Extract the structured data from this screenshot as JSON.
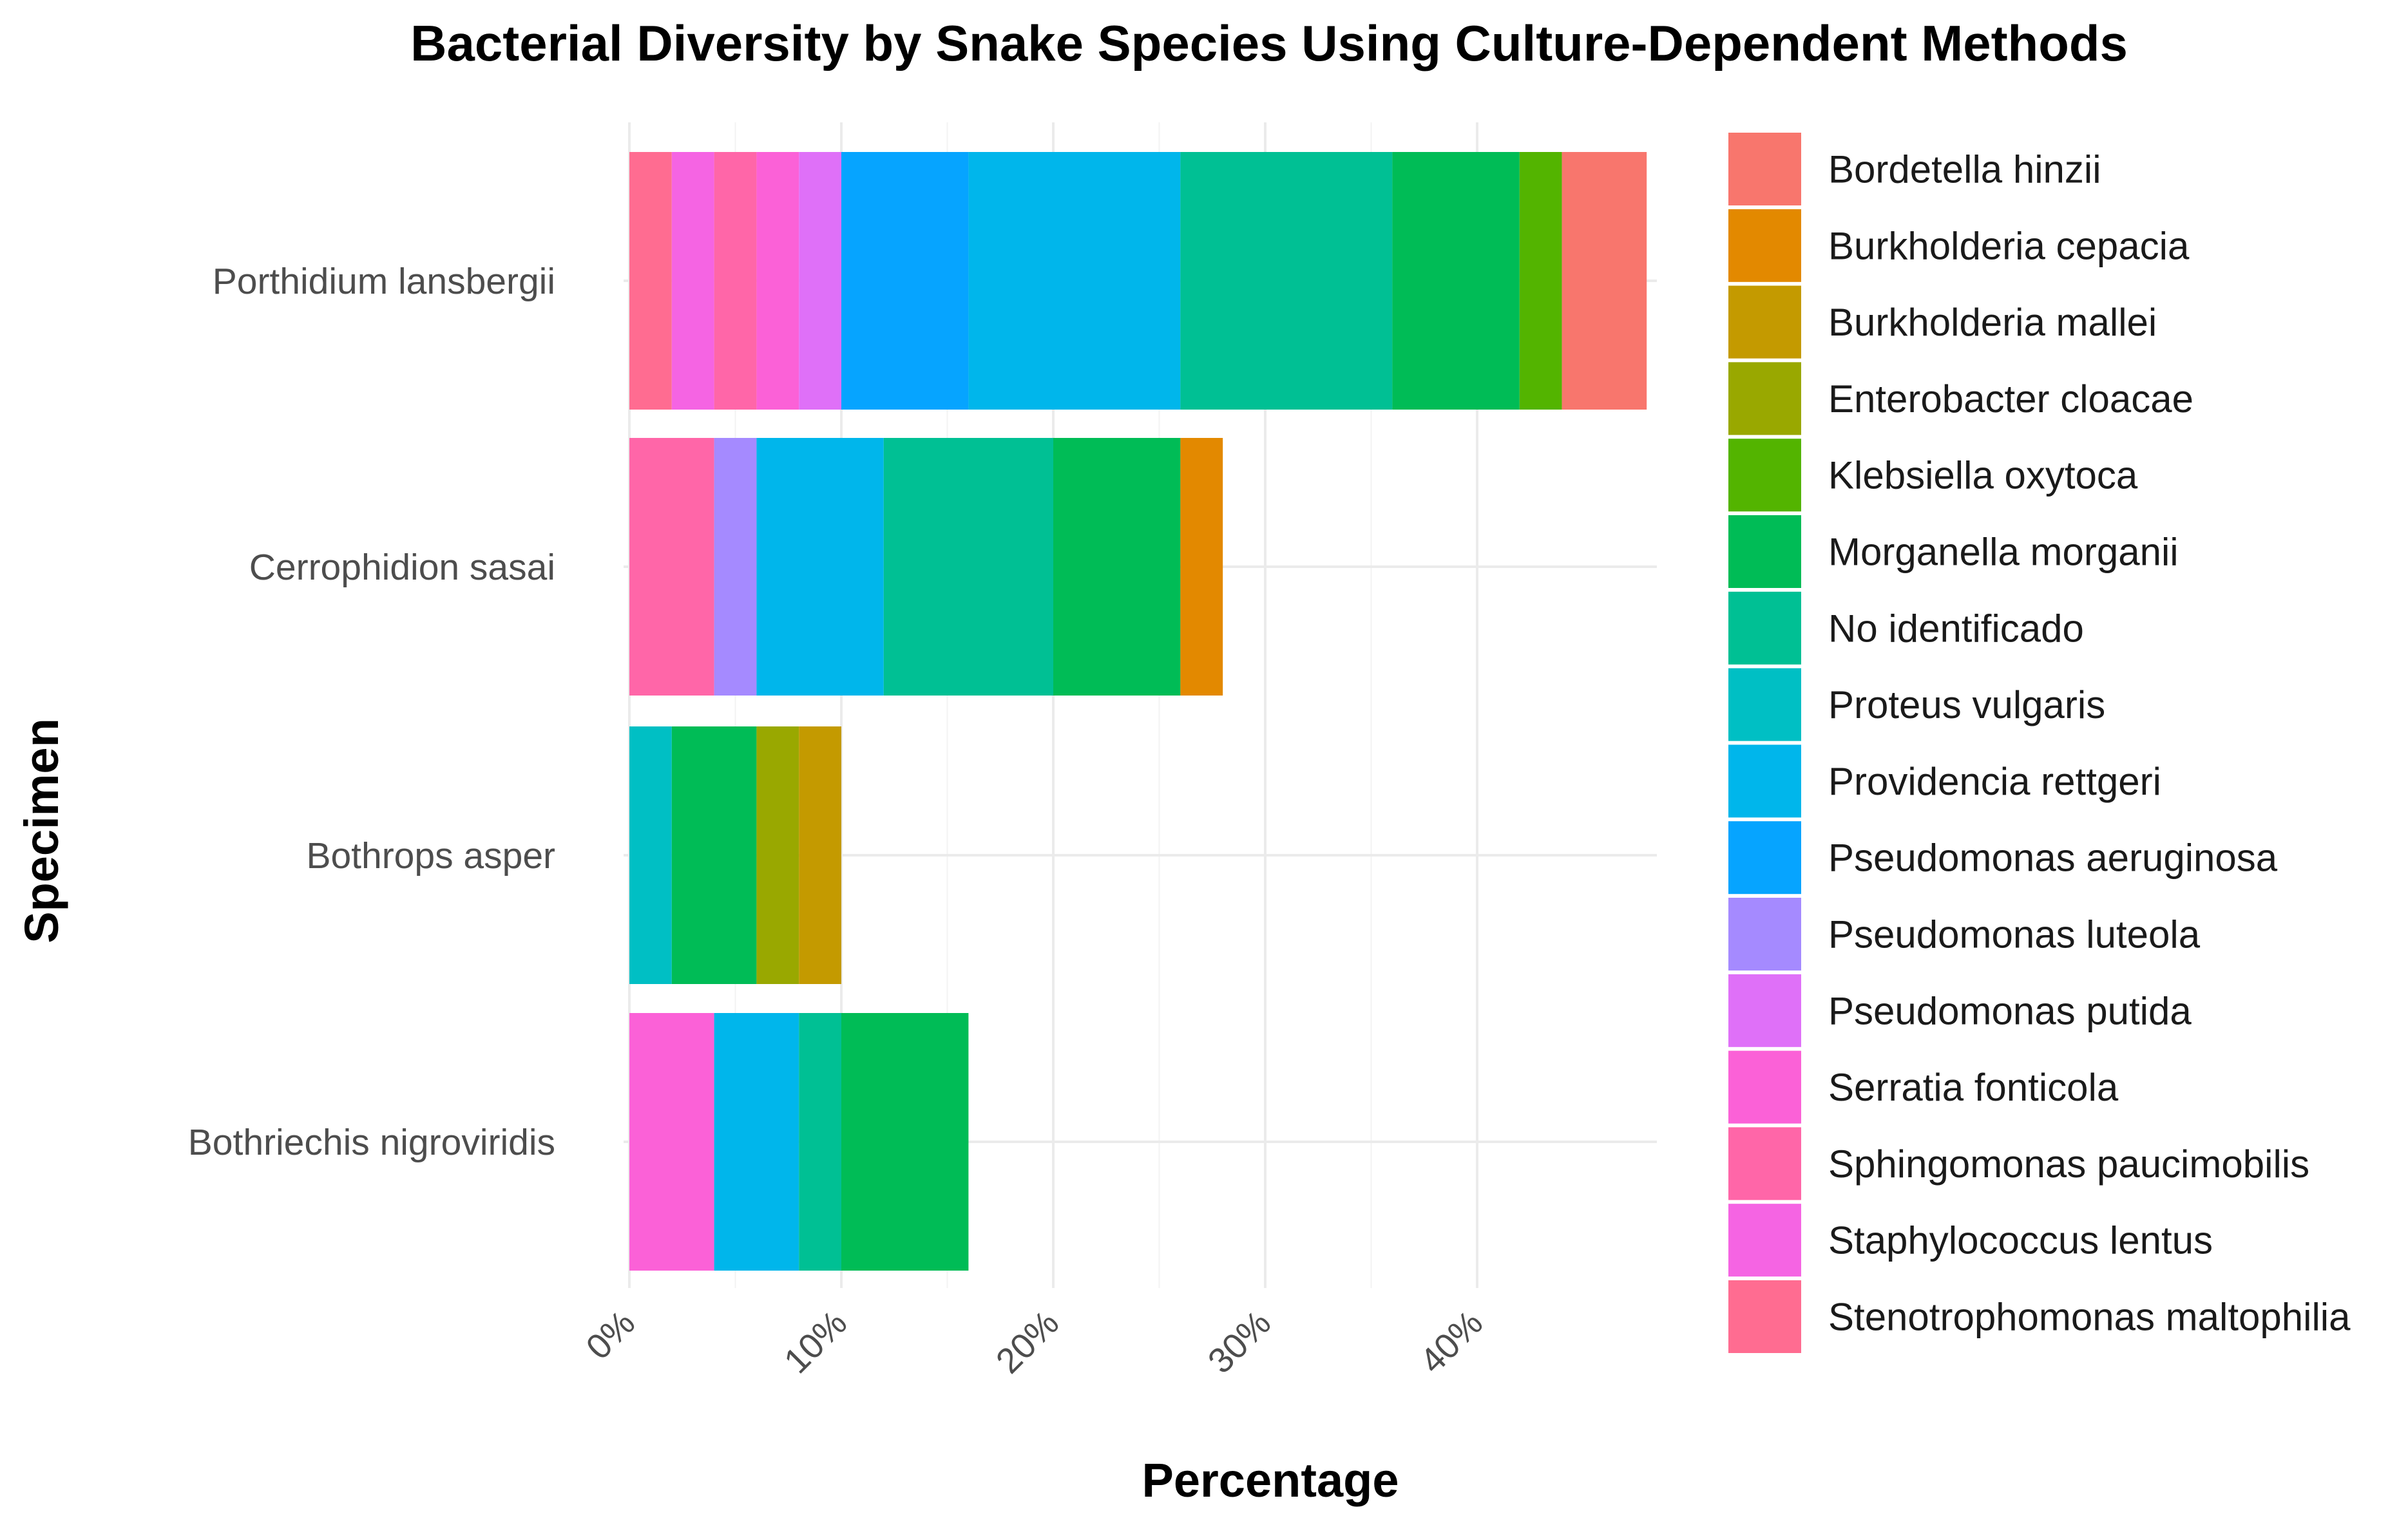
{
  "chart_data": {
    "type": "bar",
    "orientation": "horizontal",
    "stacked": true,
    "title": "Bacterial Diversity by Snake Species Using Culture-Dependent Methods",
    "xlabel": "Percentage",
    "ylabel": "Specimen",
    "xlim": [
      0,
      48
    ],
    "x_ticks": [
      0,
      10,
      20,
      30,
      40
    ],
    "x_tick_labels": [
      "0%",
      "10%",
      "20%",
      "30%",
      "40%"
    ],
    "grid": true,
    "legend_position": "right",
    "categories": [
      "Porthidium lansbergii",
      "Cerrophidion sasai",
      "Bothrops asper",
      "Bothriechis nigroviridis"
    ],
    "series": [
      {
        "name": "Bordetella hinzii",
        "color": "#F8766D",
        "values": [
          4,
          0,
          0,
          0
        ]
      },
      {
        "name": "Burkholderia cepacia",
        "color": "#E38900",
        "values": [
          0,
          2,
          0,
          0
        ]
      },
      {
        "name": "Burkholderia mallei",
        "color": "#C49A00",
        "values": [
          0,
          0,
          2,
          0
        ]
      },
      {
        "name": "Enterobacter cloacae",
        "color": "#99A800",
        "values": [
          0,
          0,
          2,
          0
        ]
      },
      {
        "name": "Klebsiella oxytoca",
        "color": "#53B400",
        "values": [
          2,
          0,
          0,
          0
        ]
      },
      {
        "name": "Morganella morganii",
        "color": "#00BC56",
        "values": [
          6,
          6,
          4,
          6
        ]
      },
      {
        "name": "No identificado",
        "color": "#00C094",
        "values": [
          10,
          8,
          0,
          2
        ]
      },
      {
        "name": "Proteus vulgaris",
        "color": "#00BFC4",
        "values": [
          0,
          0,
          2,
          0
        ]
      },
      {
        "name": "Providencia rettgeri",
        "color": "#00B6EB",
        "values": [
          10,
          6,
          0,
          4
        ]
      },
      {
        "name": "Pseudomonas aeruginosa",
        "color": "#06A4FF",
        "values": [
          6,
          0,
          0,
          0
        ]
      },
      {
        "name": "Pseudomonas luteola",
        "color": "#A58AFF",
        "values": [
          0,
          2,
          0,
          0
        ]
      },
      {
        "name": "Pseudomonas putida",
        "color": "#DF70F8",
        "values": [
          2,
          0,
          0,
          0
        ]
      },
      {
        "name": "Serratia fonticola",
        "color": "#FB61D7",
        "values": [
          2,
          0,
          0,
          4
        ]
      },
      {
        "name": "Sphingomonas paucimobilis",
        "color": "#FF66A8",
        "values": [
          2,
          4,
          0,
          0
        ]
      },
      {
        "name": "Staphylococcus lentus",
        "color": "#F564E3",
        "values": [
          2,
          0,
          0,
          0
        ]
      },
      {
        "name": "Stenotrophomonas maltophilia",
        "color": "#FF6C91",
        "values": [
          2,
          0,
          0,
          0
        ]
      }
    ],
    "legend_colors": [
      "#F8766D",
      "#E38900",
      "#C49A00",
      "#99A800",
      "#53B400",
      "#00BC56",
      "#00C094",
      "#00BFC4",
      "#00B6EB",
      "#06A4FF",
      "#A58AFF",
      "#DF70F8",
      "#FB61D7",
      "#FF66A8",
      "#F564E3",
      "#FF6C91"
    ]
  }
}
